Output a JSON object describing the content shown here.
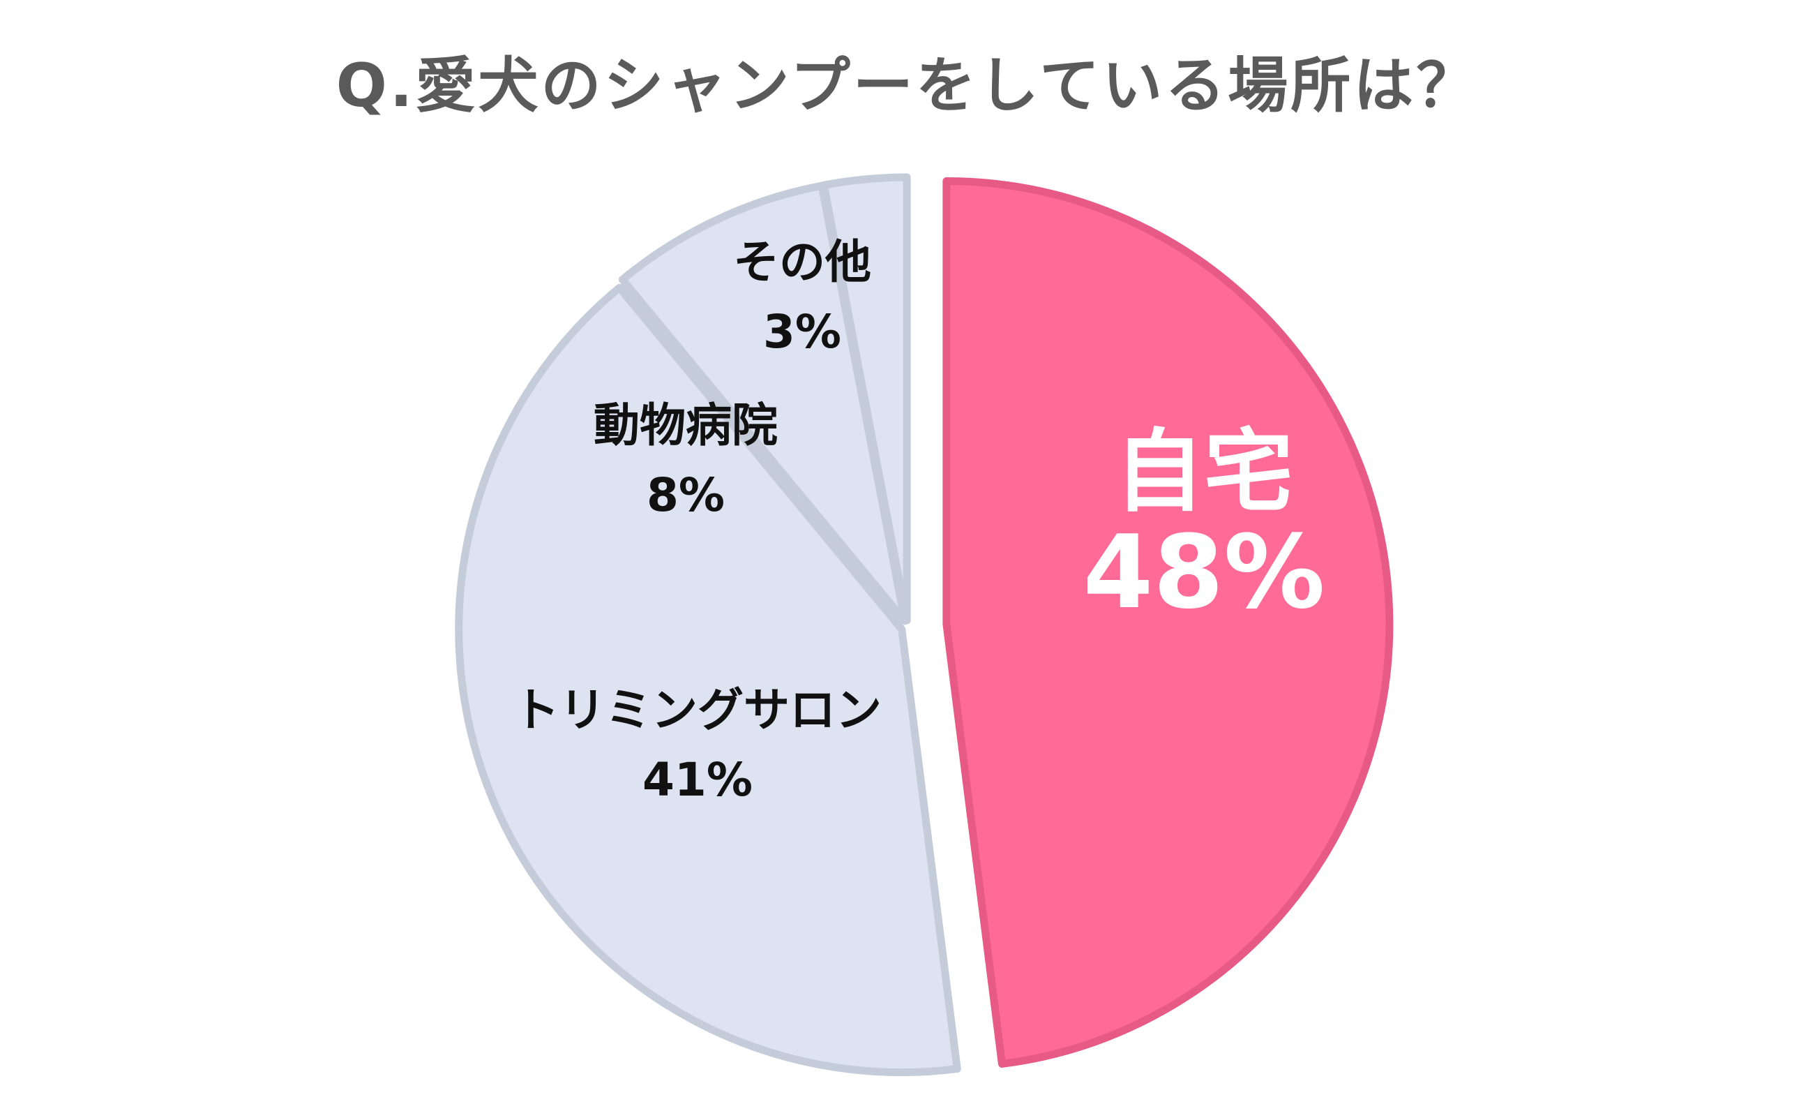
{
  "chart_data": {
    "type": "pie",
    "title": "Q.愛犬のシャンプーをしている場所は？",
    "slices": [
      {
        "label": "自宅",
        "value": 48,
        "value_label": "48%",
        "color": "#ff6b96",
        "stroke": "#e85a86",
        "text_color": "#ffffff",
        "exploded": true
      },
      {
        "label": "トリミングサロン",
        "value": 41,
        "value_label": "41%",
        "color": "#dde3f1",
        "stroke": "#c5ccd9",
        "text_color": "#111111",
        "exploded": false
      },
      {
        "label": "動物病院",
        "value": 8,
        "value_label": "8%",
        "color": "#dde3f1",
        "stroke": "#c5ccd9",
        "text_color": "#111111",
        "exploded": false
      },
      {
        "label": "その他",
        "value": 3,
        "value_label": "3%",
        "color": "#dde3f1",
        "stroke": "#c5ccd9",
        "text_color": "#111111",
        "exploded": false
      }
    ],
    "start": "12 o'clock",
    "direction": "clockwise",
    "legend": "none"
  }
}
